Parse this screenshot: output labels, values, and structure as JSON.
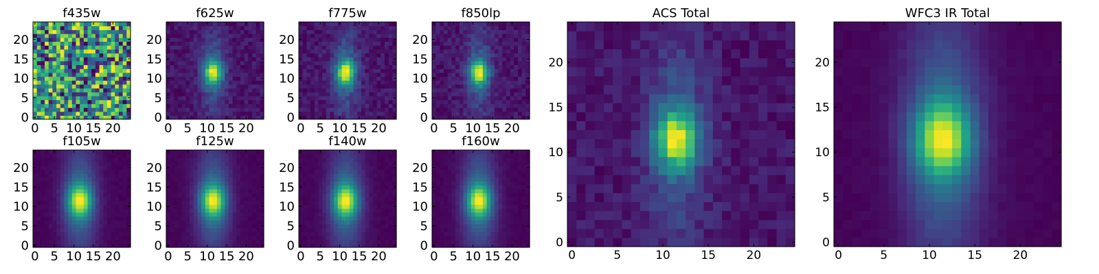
{
  "chart_data": [
    {
      "type": "heatmap",
      "title": "f435w",
      "style": "noise",
      "xticks": [
        0,
        5,
        10,
        15,
        20
      ],
      "yticks": [
        0,
        5,
        10,
        15,
        20
      ],
      "xlim": [
        -0.5,
        24.5
      ],
      "ylim": [
        -0.5,
        24.5
      ]
    },
    {
      "type": "heatmap",
      "title": "f625w",
      "style": "source",
      "xticks": [
        0,
        5,
        10,
        15,
        20
      ],
      "yticks": [
        0,
        5,
        10,
        15,
        20
      ],
      "xlim": [
        -0.5,
        24.5
      ],
      "ylim": [
        -0.5,
        24.5
      ]
    },
    {
      "type": "heatmap",
      "title": "f775w",
      "style": "source",
      "xticks": [
        0,
        5,
        10,
        15,
        20
      ],
      "yticks": [
        0,
        5,
        10,
        15,
        20
      ],
      "xlim": [
        -0.5,
        24.5
      ],
      "ylim": [
        -0.5,
        24.5
      ]
    },
    {
      "type": "heatmap",
      "title": "f850lp",
      "style": "source",
      "xticks": [
        0,
        5,
        10,
        15,
        20
      ],
      "yticks": [
        0,
        5,
        10,
        15,
        20
      ],
      "xlim": [
        -0.5,
        24.5
      ],
      "ylim": [
        -0.5,
        24.5
      ]
    },
    {
      "type": "heatmap",
      "title": "ACS Total",
      "style": "source",
      "xticks": [
        0,
        5,
        10,
        15,
        20
      ],
      "yticks": [
        0,
        5,
        10,
        15,
        20
      ],
      "xlim": [
        -0.5,
        24.5
      ],
      "ylim": [
        -0.5,
        24.5
      ]
    },
    {
      "type": "heatmap",
      "title": "WFC3 IR Total",
      "style": "smooth",
      "xticks": [
        0,
        5,
        10,
        15,
        20
      ],
      "yticks": [
        0,
        5,
        10,
        15,
        20
      ],
      "xlim": [
        -0.5,
        24.5
      ],
      "ylim": [
        -0.5,
        24.5
      ]
    },
    {
      "type": "heatmap",
      "title": "f105w",
      "style": "smooth",
      "xticks": [
        0,
        5,
        10,
        15,
        20
      ],
      "yticks": [
        0,
        5,
        10,
        15,
        20
      ],
      "xlim": [
        -0.5,
        24.5
      ],
      "ylim": [
        -0.5,
        24.5
      ]
    },
    {
      "type": "heatmap",
      "title": "f125w",
      "style": "smooth",
      "xticks": [
        0,
        5,
        10,
        15,
        20
      ],
      "yticks": [
        0,
        5,
        10,
        15,
        20
      ],
      "xlim": [
        -0.5,
        24.5
      ],
      "ylim": [
        -0.5,
        24.5
      ]
    },
    {
      "type": "heatmap",
      "title": "f140w",
      "style": "smooth",
      "xticks": [
        0,
        5,
        10,
        15,
        20
      ],
      "yticks": [
        0,
        5,
        10,
        15,
        20
      ],
      "xlim": [
        -0.5,
        24.5
      ],
      "ylim": [
        -0.5,
        24.5
      ]
    },
    {
      "type": "heatmap",
      "title": "f160w",
      "style": "smooth",
      "xticks": [
        0,
        5,
        10,
        15,
        20
      ],
      "yticks": [
        0,
        5,
        10,
        15,
        20
      ],
      "xlim": [
        -0.5,
        24.5
      ],
      "ylim": [
        -0.5,
        24.5
      ]
    }
  ],
  "colormap": "viridis",
  "grid_size": 25
}
